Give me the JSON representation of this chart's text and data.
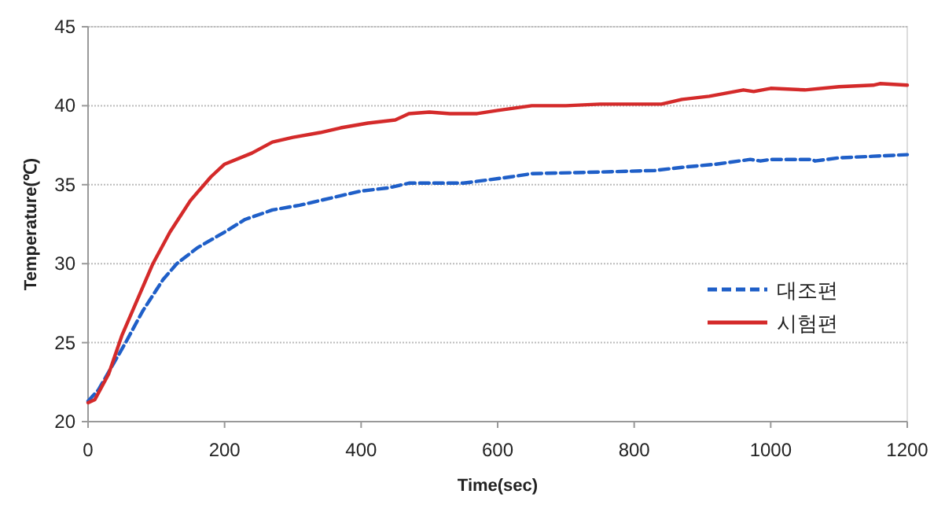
{
  "chart_data": {
    "type": "line",
    "xlabel": "Time(sec)",
    "ylabel": "Temperature(℃)",
    "xlim": [
      0,
      1200
    ],
    "ylim": [
      20,
      45
    ],
    "xticks": [
      0,
      200,
      400,
      600,
      800,
      1000,
      1200
    ],
    "yticks": [
      20,
      25,
      30,
      35,
      40,
      45
    ],
    "grid": "y",
    "legend": "right",
    "series": [
      {
        "name": "대조편",
        "color": "#1f5fc8",
        "line_style": "dashed",
        "x": [
          0,
          15,
          35,
          55,
          80,
          110,
          130,
          160,
          200,
          230,
          270,
          310,
          340,
          370,
          400,
          440,
          470,
          550,
          620,
          650,
          750,
          830,
          870,
          920,
          970,
          985,
          1000,
          1060,
          1065,
          1100,
          1150,
          1200
        ],
        "values": [
          21.3,
          22,
          23.5,
          25,
          27,
          29,
          30,
          31,
          32,
          32.8,
          33.4,
          33.7,
          34,
          34.3,
          34.6,
          34.8,
          35.1,
          35.1,
          35.5,
          35.7,
          35.8,
          35.9,
          36.1,
          36.3,
          36.6,
          36.5,
          36.6,
          36.6,
          36.5,
          36.7,
          36.8,
          36.9
        ]
      },
      {
        "name": "시험편",
        "color": "#d42a2a",
        "line_style": "solid",
        "x": [
          0,
          10,
          30,
          50,
          75,
          95,
          120,
          150,
          180,
          200,
          240,
          270,
          300,
          340,
          370,
          410,
          450,
          470,
          500,
          530,
          570,
          600,
          650,
          700,
          750,
          840,
          870,
          910,
          960,
          975,
          1000,
          1050,
          1100,
          1150,
          1160,
          1200
        ],
        "values": [
          21.2,
          21.4,
          23,
          25.5,
          28,
          30,
          32,
          34,
          35.5,
          36.3,
          37,
          37.7,
          38,
          38.3,
          38.6,
          38.9,
          39.1,
          39.5,
          39.6,
          39.5,
          39.5,
          39.7,
          40,
          40,
          40.1,
          40.1,
          40.4,
          40.6,
          41,
          40.9,
          41.1,
          41,
          41.2,
          41.3,
          41.4,
          41.3
        ]
      }
    ]
  }
}
